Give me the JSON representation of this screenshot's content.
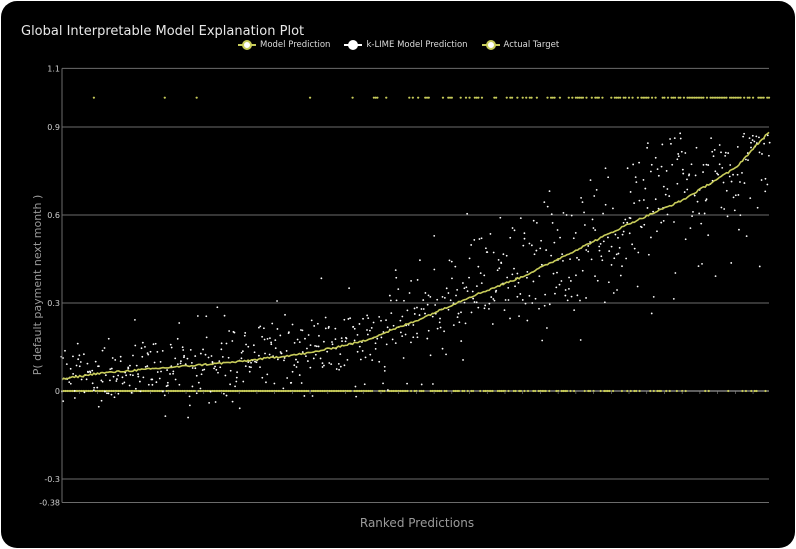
{
  "chart_data": {
    "type": "line",
    "title": "Global Interpretable Model Explanation Plot",
    "xlabel": "Ranked Predictions",
    "ylabel": "P( default payment next month )",
    "ylim": [
      -0.38,
      1.1
    ],
    "yticks": [
      -0.38,
      -0.3,
      0,
      0.3,
      0.6,
      0.9,
      1.1
    ],
    "ytick_labels": [
      "-0.38",
      "-0.3",
      "0",
      "0.3",
      "0.6",
      "0.9",
      "1.1"
    ],
    "grid": true,
    "legend_position": "top-center",
    "n_points": 400,
    "series": [
      {
        "name": "Model Prediction",
        "style": "line",
        "color": "#c8cc5a",
        "curve_x": [
          0,
          20,
          60,
          100,
          140,
          170,
          200,
          230,
          260,
          290,
          320,
          350,
          380,
          400
        ],
        "curve_y": [
          0.04,
          0.06,
          0.08,
          0.1,
          0.13,
          0.17,
          0.24,
          0.32,
          0.39,
          0.48,
          0.57,
          0.65,
          0.76,
          0.89
        ]
      },
      {
        "name": "k-LIME Model Prediction",
        "style": "scatter",
        "color": "#ffffff",
        "noise_sd": 0.08
      },
      {
        "name": "Actual Target",
        "style": "scatter",
        "color": "#c8cc5a",
        "values": [
          0,
          1
        ]
      }
    ]
  }
}
